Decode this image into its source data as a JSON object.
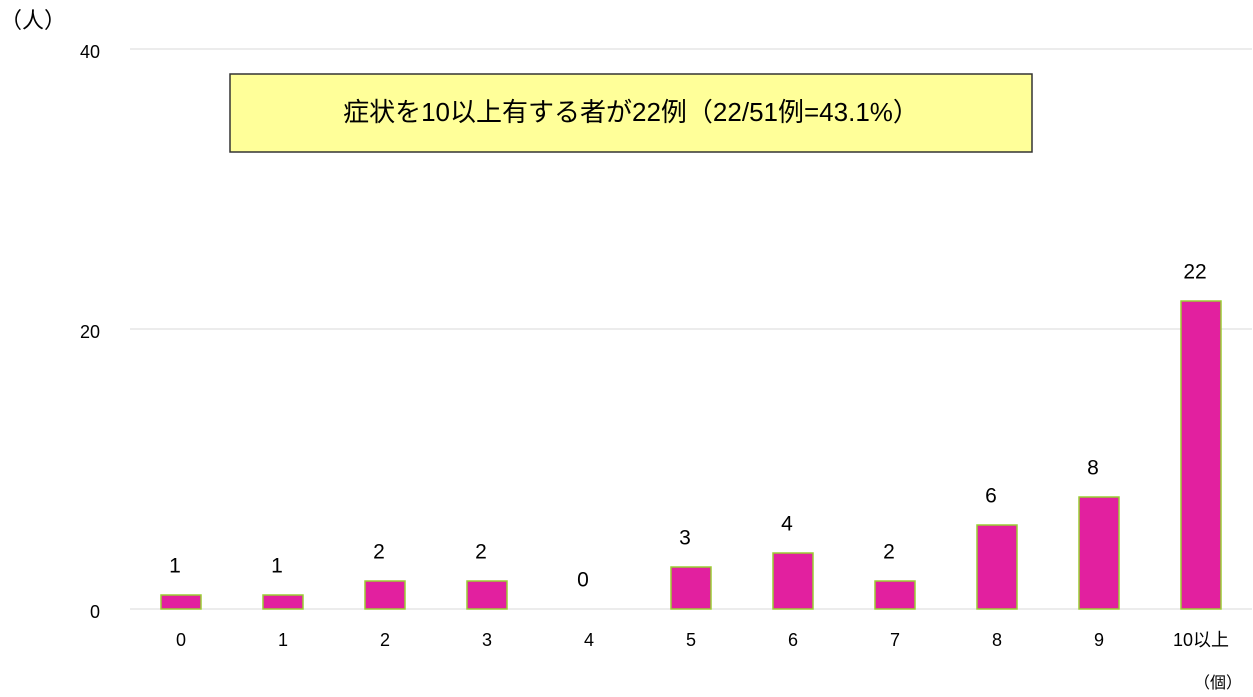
{
  "chart_data": {
    "type": "bar",
    "y_label": "（人）",
    "x_label": "（個）",
    "annotation": "症状を10以上有する者が22例（22/51例=43.1%）",
    "categories": [
      "0",
      "1",
      "2",
      "3",
      "4",
      "5",
      "6",
      "7",
      "8",
      "9",
      "10以上"
    ],
    "values": [
      1,
      1,
      2,
      2,
      0,
      3,
      4,
      2,
      6,
      8,
      22
    ],
    "color": "#e2209f",
    "edge_color": "#9acd32",
    "ylim": [
      0,
      40
    ],
    "yticks": [
      0,
      20,
      40
    ],
    "grid": true
  }
}
